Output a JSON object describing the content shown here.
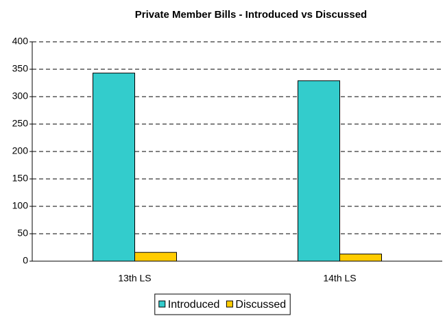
{
  "chart_data": {
    "type": "bar",
    "title": "Private Member Bills - Introduced vs Discussed",
    "categories": [
      "13th LS",
      "14th LS"
    ],
    "series": [
      {
        "name": "Introduced",
        "color": "#33cccc",
        "values": [
          343,
          329
        ]
      },
      {
        "name": "Discussed",
        "color": "#ffcc00",
        "values": [
          16,
          13
        ]
      }
    ],
    "ylim": [
      0,
      400
    ],
    "yticks": [
      0,
      50,
      100,
      150,
      200,
      250,
      300,
      350,
      400
    ],
    "grid": true,
    "legend": "bottom"
  }
}
